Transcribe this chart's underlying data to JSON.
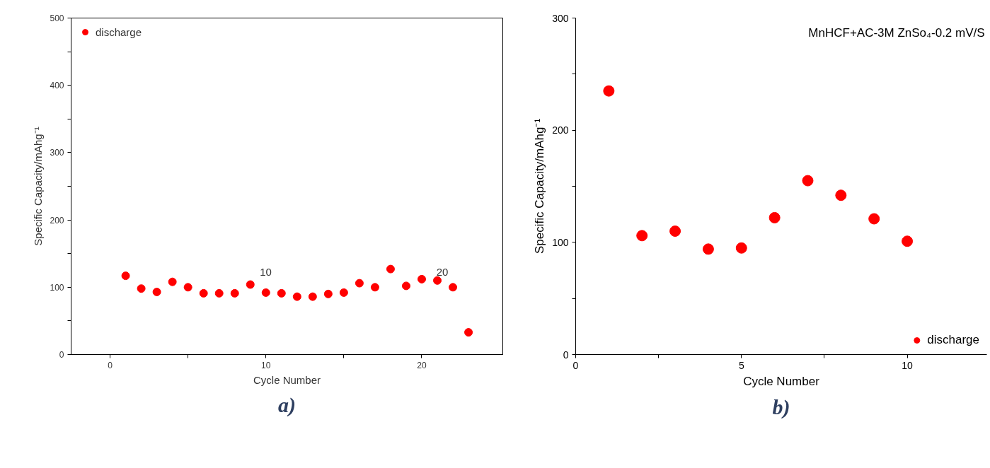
{
  "chart_data": [
    {
      "type": "scatter",
      "xlabel": "Cycle Number",
      "ylabel": "Specific Capacity/mAhg⁻¹",
      "x": [
        1,
        2,
        3,
        4,
        5,
        6,
        7,
        8,
        9,
        10,
        11,
        12,
        13,
        14,
        15,
        16,
        17,
        18,
        19,
        20,
        21,
        22,
        23
      ],
      "series": [
        {
          "name": "discharge",
          "color": "#ff0000",
          "values": [
            117,
            98,
            93,
            108,
            100,
            91,
            91,
            91,
            104,
            92,
            91,
            86,
            86,
            90,
            92,
            106,
            100,
            127,
            102,
            112,
            110,
            100,
            33
          ]
        }
      ],
      "xlim": [
        -2.5,
        25.2
      ],
      "xticks": [
        0,
        {
          "value": 5,
          "label": null
        },
        10,
        {
          "value": 15,
          "label": null
        },
        20
      ],
      "ylim": [
        0,
        500
      ],
      "yticks": [
        0,
        {
          "value": 50,
          "label": null
        },
        100,
        {
          "value": 150,
          "label": null
        },
        200,
        {
          "value": 250,
          "label": null
        },
        300,
        {
          "value": 350,
          "label": null
        },
        400,
        {
          "value": 450,
          "label": null
        },
        500
      ],
      "annotations": [
        "10",
        "20",
        "a)"
      ],
      "legend": "top left",
      "marker": "circle",
      "grid": false
    },
    {
      "type": "scatter",
      "xlabel": "Cycle Number",
      "ylabel": "Specific Capacity/mAhg⁻¹",
      "x": [
        1,
        2,
        3,
        4,
        5,
        6,
        7,
        8,
        9,
        10
      ],
      "series": [
        {
          "name": "discharge",
          "color": "#ff0000",
          "values": [
            235,
            106,
            110,
            94,
            95,
            122,
            155,
            142,
            121,
            101
          ]
        }
      ],
      "xlim": [
        0,
        12.4
      ],
      "xticks": [
        0,
        {
          "value": 2.5,
          "label": null
        },
        5,
        {
          "value": 7.5,
          "label": null
        },
        10
      ],
      "ylim": [
        0,
        300
      ],
      "yticks": [
        0,
        {
          "value": 50,
          "label": null
        },
        100,
        {
          "value": 150,
          "label": null
        },
        200,
        {
          "value": 250,
          "label": null
        },
        300
      ],
      "annotations": [
        "MnHCF+AC-3M ZnSo₄-0.2 mV/S",
        "b)"
      ],
      "legend": "bottom right",
      "marker": "circle",
      "grid": false
    }
  ]
}
